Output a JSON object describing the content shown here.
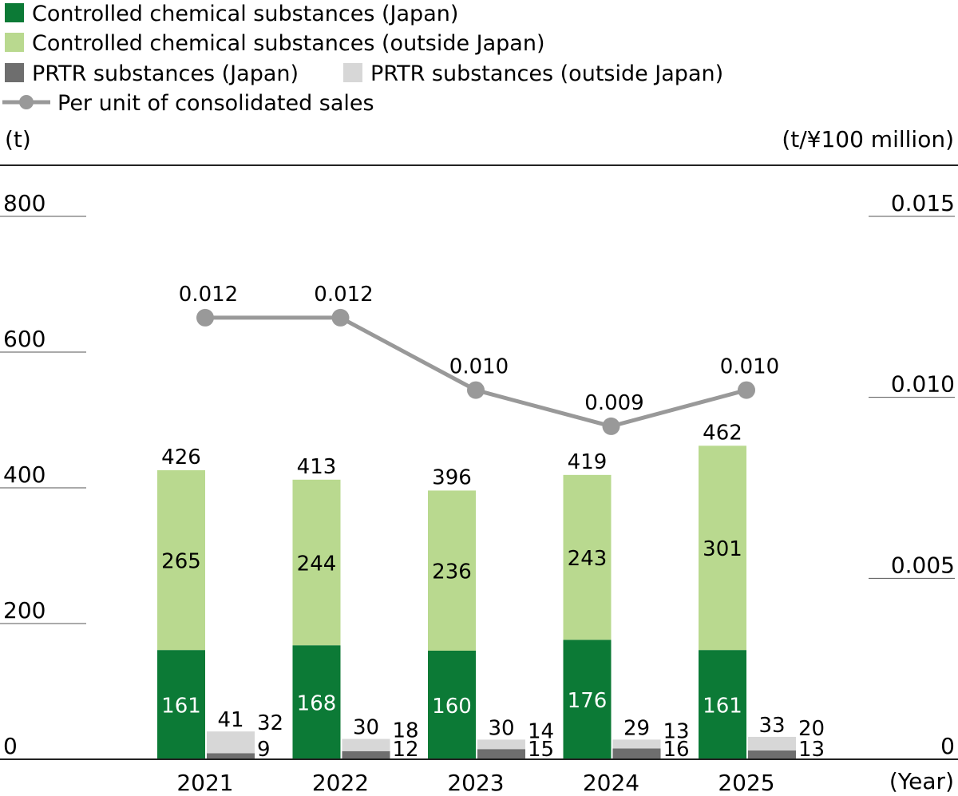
{
  "chart_data": {
    "type": "bar",
    "stacked": true,
    "legend": {
      "position": "top-left",
      "items": [
        {
          "label": "Controlled chemical substances (Japan)",
          "color": "#0c7a36",
          "marker": "square"
        },
        {
          "label": "Controlled chemical substances (outside Japan)",
          "color": "#b9d98f",
          "marker": "square"
        },
        {
          "label": "PRTR substances (Japan)",
          "color": "#6e6e6e",
          "marker": "square"
        },
        {
          "label": "PRTR substances (outside Japan)",
          "color": "#d7d7d7",
          "marker": "square"
        },
        {
          "label": "Per unit of consolidated sales",
          "color": "#999999",
          "marker": "line-dot"
        }
      ]
    },
    "left_axis": {
      "unit_label": "(t)",
      "ticks": [
        "0",
        "200",
        "400",
        "600",
        "800"
      ],
      "min": 0,
      "max": 800
    },
    "right_axis": {
      "unit_label": "(t/¥100 million)",
      "ticks": [
        "0",
        "0.005",
        "0.010",
        "0.015"
      ],
      "min": 0,
      "max": 0.015
    },
    "x_axis": {
      "unit_label": "(Year)"
    },
    "categories": [
      "2021",
      "2022",
      "2023",
      "2024",
      "2025"
    ],
    "controlled": {
      "japan": [
        161,
        168,
        160,
        176,
        161
      ],
      "outside_japan": [
        265,
        244,
        236,
        243,
        301
      ],
      "totals": [
        "426",
        "413",
        "396",
        "419",
        "462"
      ],
      "japan_labels": [
        "161",
        "168",
        "160",
        "176",
        "161"
      ],
      "outside_labels": [
        "265",
        "244",
        "236",
        "243",
        "301"
      ]
    },
    "prtr": {
      "japan": [
        9,
        12,
        15,
        16,
        13
      ],
      "outside_japan": [
        32,
        18,
        14,
        13,
        20
      ],
      "totals": [
        "41",
        "30",
        "30",
        "29",
        "33"
      ],
      "japan_labels": [
        "9",
        "12",
        "15",
        "16",
        "13"
      ],
      "outside_labels": [
        "32",
        "18",
        "14",
        "13",
        "20"
      ]
    },
    "per_unit": {
      "values": [
        0.0122,
        0.0122,
        0.0102,
        0.0092,
        0.0102
      ],
      "labels": [
        "0.012",
        "0.012",
        "0.010",
        "0.009",
        "0.010"
      ]
    }
  }
}
